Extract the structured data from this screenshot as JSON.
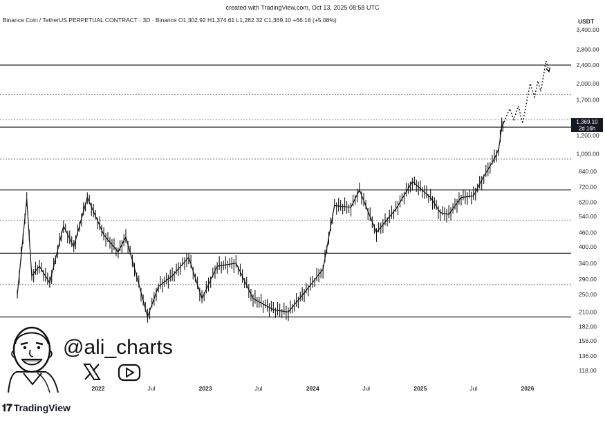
{
  "header": {
    "created_text": "created with TradingView.com, Oct 13, 2025 08:58 UTC",
    "legend_text": "Binance Coin / TetherUS PERPETUAL CONTRACT · 3D · Binance  O1,302.92  H1,374.61  L1,282.32  C1,369.10  +66.18 (+5.08%)",
    "currency": "USDT"
  },
  "branding": {
    "handle": "@ali_charts",
    "logo_text": "TradingView",
    "x_icon": "x-logo-icon",
    "youtube_icon": "youtube-icon",
    "avatar_icon": "cartoon-avatar-icon"
  },
  "price_tag": {
    "price": "1,369.10",
    "countdown": "2d 16h"
  },
  "chart_data": {
    "type": "line",
    "title": "",
    "y_scale": "log",
    "y_ticks": [
      3400,
      2800,
      2400,
      2000,
      1700,
      1369.1,
      1200,
      1000,
      840,
      720,
      620,
      540,
      460,
      400,
      340,
      290,
      250,
      210,
      182,
      158,
      136,
      118
    ],
    "y_tick_labels": [
      "3,400.00",
      "2,800.00",
      "2,400.00",
      "2,000.00",
      "1,700.00",
      "",
      "1,200.00",
      "1,000.00",
      "840.00",
      "720.00",
      "620.00",
      "540.00",
      "460.00",
      "400.00",
      "340.00",
      "290.00",
      "250.00",
      "210.00",
      "182.00",
      "158.00",
      "136.00",
      "118.00"
    ],
    "x_ticks": [
      {
        "label": "2022",
        "date": "2022-01-01",
        "bold": true
      },
      {
        "label": "Jul",
        "date": "2022-07-01",
        "bold": false
      },
      {
        "label": "2023",
        "date": "2023-01-01",
        "bold": true
      },
      {
        "label": "Jul",
        "date": "2023-07-01",
        "bold": false
      },
      {
        "label": "2024",
        "date": "2024-01-01",
        "bold": true
      },
      {
        "label": "Jul",
        "date": "2024-07-01",
        "bold": false
      },
      {
        "label": "2025",
        "date": "2025-01-01",
        "bold": true
      },
      {
        "label": "Jul",
        "date": "2025-07-01",
        "bold": false
      },
      {
        "label": "2026",
        "date": "2026-01-01",
        "bold": true
      }
    ],
    "solid_levels": [
      2400,
      1300,
      700,
      375,
      200
    ],
    "dotted_levels": [
      1800,
      1400,
      950,
      520,
      275
    ],
    "price_series": [
      {
        "date": "2021-04-01",
        "price": 250
      },
      {
        "date": "2021-05-03",
        "price": 640
      },
      {
        "date": "2021-05-20",
        "price": 300
      },
      {
        "date": "2021-06-15",
        "price": 330
      },
      {
        "date": "2021-07-20",
        "price": 280
      },
      {
        "date": "2021-09-05",
        "price": 490
      },
      {
        "date": "2021-10-10",
        "price": 400
      },
      {
        "date": "2021-11-25",
        "price": 650
      },
      {
        "date": "2022-01-20",
        "price": 450
      },
      {
        "date": "2022-03-10",
        "price": 380
      },
      {
        "date": "2022-04-05",
        "price": 440
      },
      {
        "date": "2022-05-12",
        "price": 300
      },
      {
        "date": "2022-06-18",
        "price": 200
      },
      {
        "date": "2022-07-25",
        "price": 270
      },
      {
        "date": "2022-09-10",
        "price": 300
      },
      {
        "date": "2022-11-05",
        "price": 360
      },
      {
        "date": "2022-12-20",
        "price": 240
      },
      {
        "date": "2023-02-10",
        "price": 330
      },
      {
        "date": "2023-04-15",
        "price": 340
      },
      {
        "date": "2023-06-12",
        "price": 240
      },
      {
        "date": "2023-08-20",
        "price": 215
      },
      {
        "date": "2023-10-10",
        "price": 210
      },
      {
        "date": "2023-12-10",
        "price": 260
      },
      {
        "date": "2024-02-05",
        "price": 320
      },
      {
        "date": "2024-03-15",
        "price": 600
      },
      {
        "date": "2024-05-10",
        "price": 590
      },
      {
        "date": "2024-06-08",
        "price": 700
      },
      {
        "date": "2024-08-05",
        "price": 460
      },
      {
        "date": "2024-10-10",
        "price": 580
      },
      {
        "date": "2024-12-05",
        "price": 760
      },
      {
        "date": "2025-02-05",
        "price": 650
      },
      {
        "date": "2025-03-10",
        "price": 560
      },
      {
        "date": "2025-04-08",
        "price": 550
      },
      {
        "date": "2025-05-20",
        "price": 650
      },
      {
        "date": "2025-07-01",
        "price": 660
      },
      {
        "date": "2025-08-05",
        "price": 800
      },
      {
        "date": "2025-09-10",
        "price": 950
      },
      {
        "date": "2025-09-25",
        "price": 1050
      },
      {
        "date": "2025-10-05",
        "price": 1300
      },
      {
        "date": "2025-10-13",
        "price": 1369.1
      }
    ],
    "projection": [
      {
        "date": "2025-10-13",
        "price": 1369.1
      },
      {
        "date": "2025-11-01",
        "price": 1560
      },
      {
        "date": "2025-11-15",
        "price": 1400
      },
      {
        "date": "2025-12-01",
        "price": 1600
      },
      {
        "date": "2025-12-15",
        "price": 1350
      },
      {
        "date": "2026-01-10",
        "price": 2000
      },
      {
        "date": "2026-01-25",
        "price": 1750
      },
      {
        "date": "2026-02-05",
        "price": 2050
      },
      {
        "date": "2026-02-15",
        "price": 1850
      },
      {
        "date": "2026-03-05",
        "price": 2500
      },
      {
        "date": "2026-03-15",
        "price": 2250
      }
    ]
  }
}
